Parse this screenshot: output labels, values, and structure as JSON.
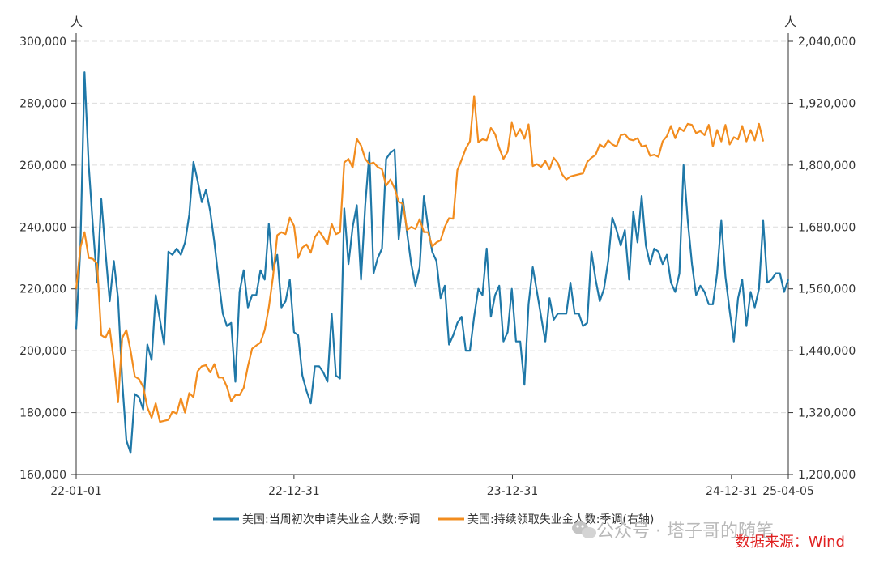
{
  "chart_data": {
    "type": "line",
    "left_unit": "人",
    "right_unit": "人",
    "x_ticks": [
      "22-01-01",
      "22-12-31",
      "23-12-31",
      "24-12-31",
      "25-04-05"
    ],
    "left_axis": {
      "min": 160000,
      "max": 300000,
      "ticks": [
        "160,000",
        "180,000",
        "200,000",
        "220,000",
        "240,000",
        "260,000",
        "280,000",
        "300,000"
      ]
    },
    "right_axis": {
      "min": 1200000,
      "max": 2040000,
      "ticks": [
        "1,200,000",
        "1,320,000",
        "1,440,000",
        "1,560,000",
        "1,680,000",
        "1,800,000",
        "1,920,000",
        "2,040,000"
      ]
    },
    "grid": true,
    "legend_position": "bottom",
    "series": [
      {
        "name": "美国:当周初次申请失业金人数:季调",
        "axis": "left",
        "color": "#1f78a8",
        "start": "2022-01-01",
        "values": [
          207000,
          233000,
          290000,
          260000,
          240000,
          222000,
          249000,
          232000,
          216000,
          229000,
          217000,
          190000,
          171000,
          167000,
          186000,
          185000,
          181000,
          202000,
          197000,
          218000,
          210000,
          202000,
          232000,
          231000,
          233000,
          231000,
          235000,
          244000,
          261000,
          255000,
          248000,
          252000,
          245000,
          235000,
          223000,
          212000,
          208000,
          209000,
          190000,
          219000,
          226000,
          214000,
          218000,
          218000,
          226000,
          223000,
          241000,
          226000,
          231000,
          214000,
          216000,
          223000,
          206000,
          205000,
          192000,
          187000,
          183000,
          195000,
          195000,
          193000,
          190000,
          212000,
          192000,
          191000,
          246000,
          228000,
          240000,
          247000,
          223000,
          247000,
          264000,
          225000,
          230000,
          233000,
          262000,
          264000,
          265000,
          236000,
          249000,
          238000,
          228000,
          221000,
          227000,
          250000,
          240000,
          232000,
          229000,
          217000,
          221000,
          202000,
          205000,
          209000,
          211000,
          200000,
          200000,
          211000,
          220000,
          218000,
          233000,
          211000,
          218000,
          221000,
          203000,
          206000,
          220000,
          203000,
          203000,
          189000,
          215000,
          227000,
          219000,
          211000,
          203000,
          217000,
          210000,
          212000,
          212000,
          212000,
          222000,
          212000,
          212000,
          208000,
          209000,
          232000,
          223000,
          216000,
          220000,
          229000,
          243000,
          239000,
          234000,
          239000,
          223000,
          245000,
          235000,
          250000,
          234000,
          228000,
          233000,
          232000,
          228000,
          231000,
          222000,
          219000,
          225000,
          260000,
          242000,
          228000,
          218000,
          221000,
          219000,
          215000,
          215000,
          225000,
          242000,
          224000,
          213000,
          203000,
          217000,
          223000,
          208000,
          219000,
          214000,
          220000,
          242000,
          222000,
          223000,
          225000,
          225000,
          219000,
          223000
        ]
      },
      {
        "name": "美国:持续领取失业金人数:季调(右轴)",
        "axis": "right",
        "color": "#f28c1e",
        "start": "2022-01-01",
        "values": [
          1560000,
          1640000,
          1670000,
          1620000,
          1618000,
          1608000,
          1470000,
          1465000,
          1483000,
          1420000,
          1340000,
          1465000,
          1480000,
          1440000,
          1390000,
          1385000,
          1370000,
          1330000,
          1310000,
          1338000,
          1302000,
          1304000,
          1306000,
          1322000,
          1318000,
          1348000,
          1320000,
          1358000,
          1350000,
          1400000,
          1410000,
          1412000,
          1398000,
          1414000,
          1388000,
          1388000,
          1370000,
          1342000,
          1354000,
          1354000,
          1368000,
          1410000,
          1444000,
          1450000,
          1456000,
          1480000,
          1524000,
          1584000,
          1664000,
          1670000,
          1666000,
          1698000,
          1682000,
          1620000,
          1640000,
          1646000,
          1630000,
          1660000,
          1672000,
          1660000,
          1646000,
          1686000,
          1666000,
          1670000,
          1805000,
          1812000,
          1795000,
          1851000,
          1838000,
          1812000,
          1802000,
          1805000,
          1796000,
          1792000,
          1760000,
          1772000,
          1755000,
          1729000,
          1725000,
          1674000,
          1680000,
          1676000,
          1695000,
          1670000,
          1670000,
          1642000,
          1650000,
          1654000,
          1680000,
          1697000,
          1696000,
          1790000,
          1810000,
          1832000,
          1846000,
          1934000,
          1844000,
          1850000,
          1848000,
          1872000,
          1860000,
          1833000,
          1812000,
          1826000,
          1882000,
          1856000,
          1870000,
          1851000,
          1879000,
          1798000,
          1802000,
          1796000,
          1808000,
          1792000,
          1814000,
          1804000,
          1782000,
          1772000,
          1778000,
          1780000,
          1782000,
          1784000,
          1806000,
          1814000,
          1820000,
          1840000,
          1834000,
          1848000,
          1840000,
          1836000,
          1858000,
          1860000,
          1850000,
          1848000,
          1852000,
          1836000,
          1838000,
          1818000,
          1820000,
          1816000,
          1846000,
          1856000,
          1876000,
          1852000,
          1872000,
          1866000,
          1880000,
          1878000,
          1862000,
          1866000,
          1858000,
          1878000,
          1836000,
          1868000,
          1846000,
          1878000,
          1840000,
          1854000,
          1850000,
          1876000,
          1846000,
          1868000,
          1848000,
          1880000,
          1846000
        ]
      }
    ]
  },
  "watermark": "公众号 · 塔子哥的随笔",
  "source": "数据来源：Wind"
}
